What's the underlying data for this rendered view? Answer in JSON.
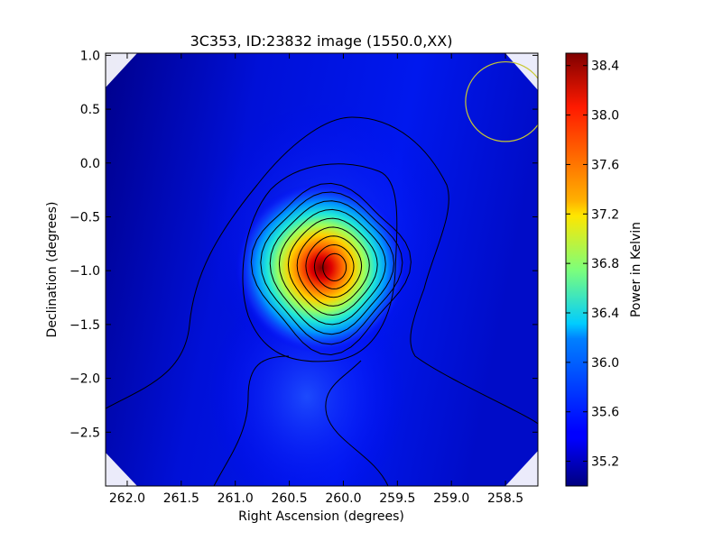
{
  "chart_data": {
    "type": "heatmap",
    "title": "3C353, ID:23832 image (1550.0,XX)",
    "xlabel": "Right Ascension (degrees)",
    "ylabel": "Declination (degrees)",
    "colorbar_label": "Power in Kelvin",
    "x_axis": {
      "range": [
        262.2,
        258.2
      ],
      "ticks": [
        262.0,
        261.5,
        261.0,
        260.5,
        260.0,
        259.5,
        259.0,
        258.5
      ],
      "tick_labels": [
        "262.0",
        "261.5",
        "261.0",
        "260.5",
        "260.0",
        "259.5",
        "259.0",
        "258.5"
      ]
    },
    "y_axis": {
      "range": [
        -3.0,
        1.02
      ],
      "ticks": [
        1.0,
        0.5,
        0.0,
        -0.5,
        -1.0,
        -1.5,
        -2.0,
        -2.5
      ],
      "tick_labels": [
        "1.0",
        "0.5",
        "0.0",
        "−0.5",
        "−1.0",
        "−1.5",
        "−2.0",
        "−2.5"
      ]
    },
    "colorbar": {
      "range": [
        35.0,
        38.5
      ],
      "ticks": [
        35.2,
        35.6,
        36.0,
        36.4,
        36.8,
        37.2,
        37.6,
        38.0,
        38.4
      ],
      "tick_labels": [
        "35.2",
        "35.6",
        "36.0",
        "36.4",
        "36.8",
        "37.2",
        "37.6",
        "38.0",
        "38.4"
      ],
      "colormap": "jet"
    },
    "peak": {
      "ra": 260.08,
      "dec": -0.97,
      "value": 38.5
    },
    "background_level": 35.1,
    "contour_levels": [
      35.4,
      35.7,
      36.0,
      36.3,
      36.6,
      36.9,
      37.2,
      37.5,
      37.8,
      38.1,
      38.4
    ],
    "contour_color": "#000000",
    "beam_circle": {
      "ra": 258.5,
      "dec": 0.57,
      "radius_deg": 0.37,
      "color": "#c8c832"
    },
    "blanked_corners": true,
    "grid": false,
    "legend": "none"
  }
}
